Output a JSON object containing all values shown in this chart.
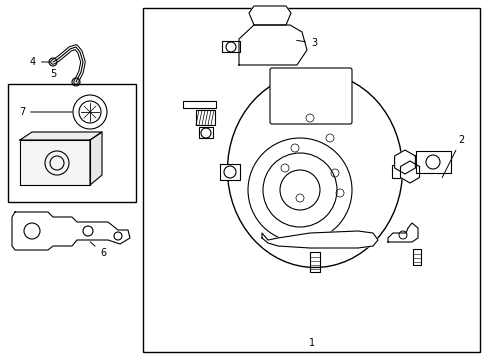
{
  "title": "",
  "background_color": "#ffffff",
  "line_color": "#000000",
  "fig_width": 4.9,
  "fig_height": 3.6,
  "dpi": 100
}
